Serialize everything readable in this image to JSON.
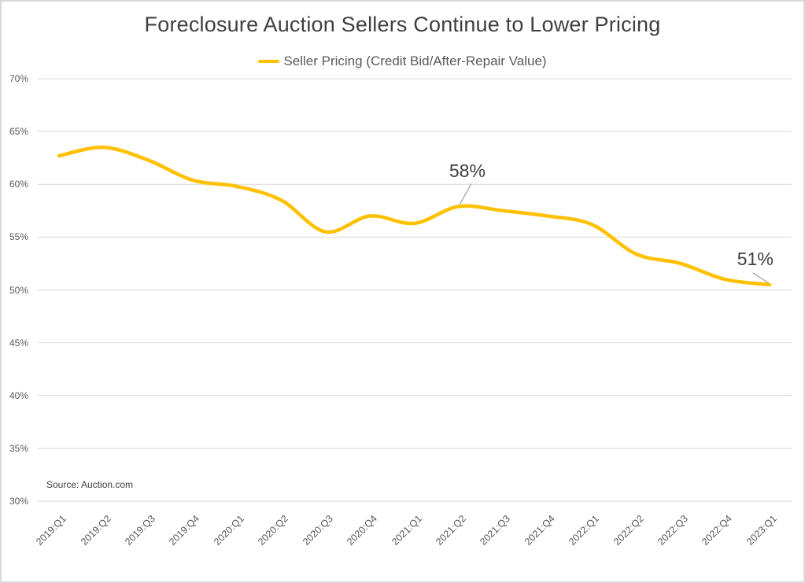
{
  "title": "Foreclosure Auction Sellers Continue to Lower Pricing",
  "legend": {
    "label": "Seller Pricing (Credit Bid/After-Repair Value)",
    "marker_color": "#FFC000"
  },
  "source_note": "Source: Auction.com",
  "annotations": [
    {
      "text": "58%",
      "point": "2021:Q2"
    },
    {
      "text": "51%",
      "point": "2023:Q1"
    }
  ],
  "colors": {
    "line": "#FFC000",
    "gridline": "#d9d9d9",
    "axis_text": "#595959",
    "title_text": "#3f3f3f",
    "annotation_text": "#404040",
    "leader_line": "#a6a6a6"
  },
  "chart_data": {
    "type": "line",
    "smooth": true,
    "grid": true,
    "legend_position": "top",
    "title": "Foreclosure Auction Sellers Continue to Lower Pricing",
    "xlabel": "",
    "ylabel": "",
    "ylim": [
      30,
      70
    ],
    "y_tick_step": 5,
    "y_ticks_top_to_bottom": [
      "70%",
      "65%",
      "60%",
      "55%",
      "50%",
      "45%",
      "40%",
      "35%",
      "30%"
    ],
    "categories": [
      "2019:Q1",
      "2019:Q2",
      "2019:Q3",
      "2019:Q4",
      "2020:Q1",
      "2020:Q2",
      "2020:Q3",
      "2020:Q4",
      "2021:Q1",
      "2021:Q2",
      "2021:Q3",
      "2021:Q4",
      "2022:Q1",
      "2022:Q2",
      "2022:Q3",
      "2022:Q4",
      "2023:Q1"
    ],
    "series": [
      {
        "name": "Seller Pricing (Credit Bid/After-Repair Value)",
        "values": [
          62.7,
          63.5,
          62.3,
          60.4,
          59.8,
          58.5,
          55.5,
          57.0,
          56.3,
          57.9,
          57.5,
          57.0,
          56.2,
          53.4,
          52.5,
          51.0,
          50.5
        ]
      }
    ]
  }
}
